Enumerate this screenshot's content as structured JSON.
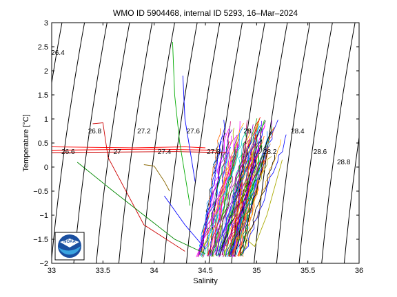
{
  "chart_data": {
    "type": "scatter",
    "title": "WMO ID 5904468, internal ID 5293, 16–Mar–2024",
    "xlabel": "Salinity",
    "ylabel": "Temperature [°C]",
    "xlim": [
      33,
      36
    ],
    "ylim": [
      -2,
      3
    ],
    "xticks": [
      "33",
      "33.5",
      "34",
      "34.5",
      "35",
      "35.5",
      "36"
    ],
    "yticks": [
      "-2",
      "-1.5",
      "-1",
      "-0.5",
      "0",
      "0.5",
      "1",
      "1.5",
      "2",
      "2.5",
      "3"
    ],
    "grid": false,
    "density_contours": {
      "labels": [
        {
          "text": "26.4",
          "s": 33.06,
          "t": 2.33
        },
        {
          "text": "26.8",
          "s": 33.42,
          "t": 0.7
        },
        {
          "text": "27.2",
          "s": 33.9,
          "t": 0.7
        },
        {
          "text": "27.6",
          "s": 34.38,
          "t": 0.7
        },
        {
          "text": "28",
          "s": 34.91,
          "t": 0.7
        },
        {
          "text": "28.4",
          "s": 35.4,
          "t": 0.7
        },
        {
          "text": "26.6",
          "s": 33.16,
          "t": 0.27
        },
        {
          "text": "27",
          "s": 33.64,
          "t": 0.27
        },
        {
          "text": "27.4",
          "s": 34.1,
          "t": 0.27
        },
        {
          "text": "27.8",
          "s": 34.58,
          "t": 0.27
        },
        {
          "text": "28.2",
          "s": 35.13,
          "t": 0.27
        },
        {
          "text": "28.6",
          "s": 35.62,
          "t": 0.27
        },
        {
          "text": "28.8",
          "s": 35.85,
          "t": 0.06
        }
      ]
    },
    "profiles_summary": {
      "salinity_range": [
        34.3,
        35.1
      ],
      "temperature_range": [
        -1.85,
        1.1
      ]
    }
  },
  "logo": {
    "text": "NOAA"
  }
}
